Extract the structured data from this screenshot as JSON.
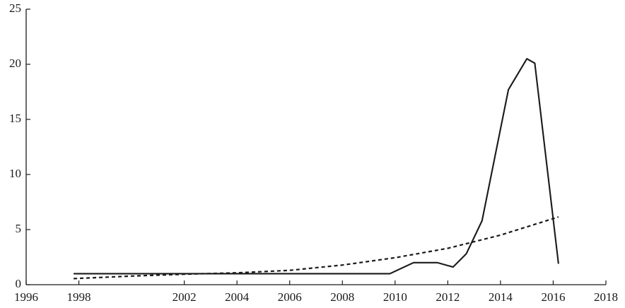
{
  "chart_data": {
    "type": "line",
    "title": "",
    "xlabel": "",
    "ylabel": "",
    "xlim": [
      1996,
      2018
    ],
    "ylim": [
      0,
      25
    ],
    "x_ticks": [
      1996,
      1998,
      2002,
      2004,
      2006,
      2008,
      2010,
      2012,
      2014,
      2016,
      2018
    ],
    "y_ticks": [
      0,
      5,
      10,
      15,
      20,
      25
    ],
    "grid": false,
    "legend": "none",
    "series": [
      {
        "style": "solid",
        "color": "#1a1a1a",
        "points": [
          [
            1997.8,
            1.0
          ],
          [
            2004.0,
            1.0
          ],
          [
            2009.8,
            1.0
          ],
          [
            2010.7,
            2.0
          ],
          [
            2011.6,
            2.0
          ],
          [
            2012.2,
            1.6
          ],
          [
            2012.7,
            2.8
          ],
          [
            2013.3,
            5.8
          ],
          [
            2014.3,
            17.7
          ],
          [
            2015.0,
            20.5
          ],
          [
            2015.3,
            20.1
          ],
          [
            2016.2,
            1.9
          ]
        ]
      },
      {
        "style": "dashed",
        "color": "#1a1a1a",
        "points": [
          [
            1997.8,
            0.55
          ],
          [
            2000,
            0.78
          ],
          [
            2002,
            0.95
          ],
          [
            2004,
            1.08
          ],
          [
            2006,
            1.3
          ],
          [
            2008,
            1.78
          ],
          [
            2010,
            2.45
          ],
          [
            2012,
            3.3
          ],
          [
            2014,
            4.5
          ],
          [
            2016.2,
            6.15
          ]
        ]
      }
    ]
  }
}
